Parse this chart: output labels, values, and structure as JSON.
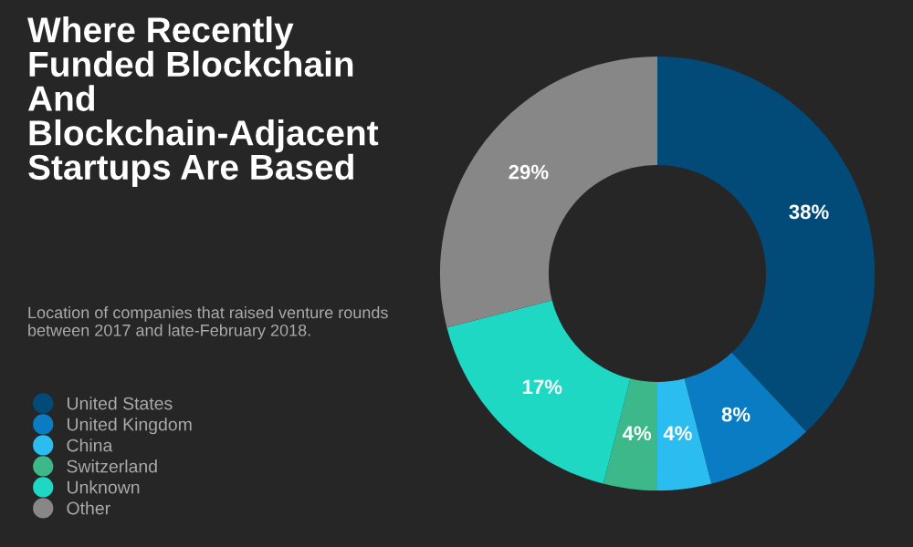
{
  "chart_data": {
    "type": "donut",
    "title": "Where Recently Funded Blockchain And Blockchain-Adjacent Startups Are Based",
    "subtitle": "Location of companies that raised venture rounds between 2017 and late-February 2018.",
    "categories": [
      "United States",
      "United Kingdom",
      "China",
      "Switzerland",
      "Unknown",
      "Other"
    ],
    "values": [
      38,
      8,
      4,
      4,
      17,
      29
    ],
    "colors": [
      "#024a78",
      "#0a7cc4",
      "#2cbdf0",
      "#3cb88a",
      "#1fd8c4",
      "#878787"
    ],
    "value_labels": [
      "38%",
      "8%",
      "4%",
      "4%",
      "17%",
      "29%"
    ],
    "legend": "left"
  }
}
